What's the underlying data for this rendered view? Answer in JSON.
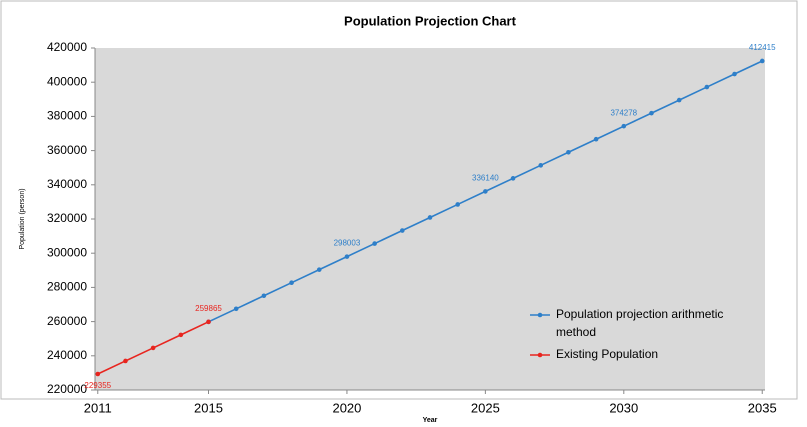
{
  "chart_data": {
    "type": "line",
    "title": "Population Projection Chart",
    "xlabel": "Year",
    "ylabel": "Population (person)",
    "xlim": [
      2010.9,
      2035.1
    ],
    "xticks": [
      2011,
      2015,
      2020,
      2025,
      2030,
      2035
    ],
    "ylim": [
      220000,
      420000
    ],
    "yticks": [
      220000,
      240000,
      260000,
      280000,
      300000,
      320000,
      340000,
      360000,
      380000,
      400000,
      420000
    ],
    "grid": false,
    "legend": "lower right",
    "series": [
      {
        "name": "Population projection arithmetic method",
        "color": "#2e7fc9",
        "x": [
          2015,
          2016,
          2017,
          2018,
          2019,
          2020,
          2021,
          2022,
          2023,
          2024,
          2025,
          2026,
          2027,
          2028,
          2029,
          2030,
          2031,
          2032,
          2033,
          2034,
          2035
        ],
        "values": [
          259865,
          267492.5,
          275120,
          282747.5,
          290375,
          298002.5,
          305630,
          313257.5,
          320885,
          328512.5,
          336140,
          343767.5,
          351395,
          359022.5,
          366650,
          374277.5,
          381905,
          389532.5,
          397160,
          404787.5,
          412415
        ],
        "value_labels": [
          null,
          null,
          null,
          null,
          null,
          "298003",
          null,
          null,
          null,
          null,
          "336140",
          null,
          null,
          null,
          null,
          "374278",
          null,
          null,
          null,
          null,
          "412415"
        ]
      },
      {
        "name": "Existing Population",
        "color": "#e8251f",
        "x": [
          2011,
          2012,
          2013,
          2014,
          2015
        ],
        "values": [
          229355,
          236982.5,
          244610,
          252237.5,
          259865
        ],
        "value_labels": [
          "229355",
          null,
          null,
          null,
          "259865"
        ]
      }
    ]
  }
}
